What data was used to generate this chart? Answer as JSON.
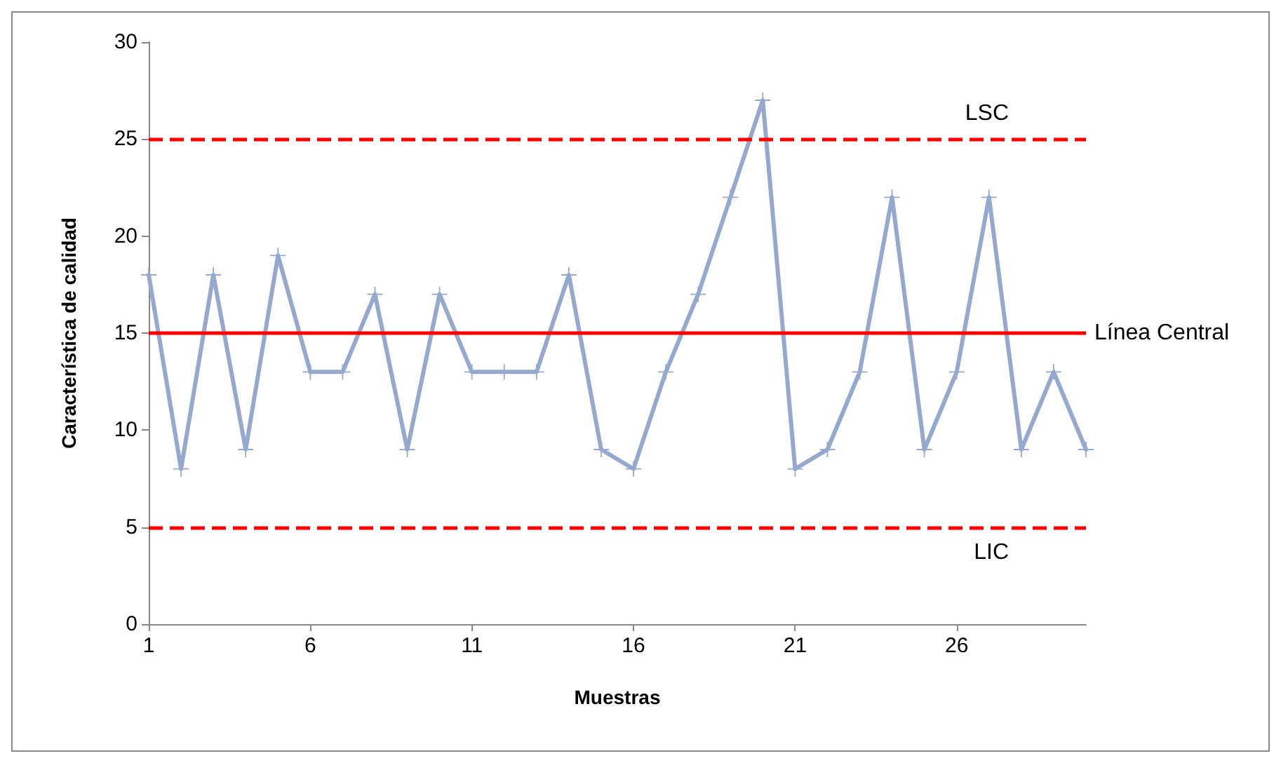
{
  "chart_data": {
    "type": "line",
    "xlabel": "Muestras",
    "ylabel": "Característica de calidad",
    "x": [
      1,
      2,
      3,
      4,
      5,
      6,
      7,
      8,
      9,
      10,
      11,
      12,
      13,
      14,
      15,
      16,
      17,
      18,
      19,
      20,
      21,
      22,
      23,
      24,
      25,
      26,
      27,
      28,
      29,
      30
    ],
    "series": [
      {
        "color": "#95a9cf",
        "values": [
          18,
          8,
          18,
          9,
          19,
          13,
          13,
          17,
          9,
          17,
          13,
          13,
          13,
          18,
          9,
          8,
          13,
          17,
          22,
          27,
          8,
          9,
          13,
          22,
          9,
          13,
          22,
          9,
          13,
          9
        ]
      }
    ],
    "xlim": [
      1,
      30
    ],
    "xticks": [
      1,
      6,
      11,
      16,
      21,
      26
    ],
    "ylim": [
      0,
      30
    ],
    "yticks": [
      0,
      5,
      10,
      15,
      20,
      25,
      30
    ],
    "ref_lines": [
      {
        "axis": "y",
        "value": 25,
        "label": "LSC",
        "color": "#ff0000",
        "line_style": "dashed"
      },
      {
        "axis": "y",
        "value": 15,
        "label": "Línea Central",
        "color": "#ff0000",
        "line_style": "solid"
      },
      {
        "axis": "y",
        "value": 5,
        "label": "LIC",
        "color": "#ff0000",
        "line_style": "dashed"
      }
    ],
    "marker": "cross",
    "line_style": "solid"
  }
}
